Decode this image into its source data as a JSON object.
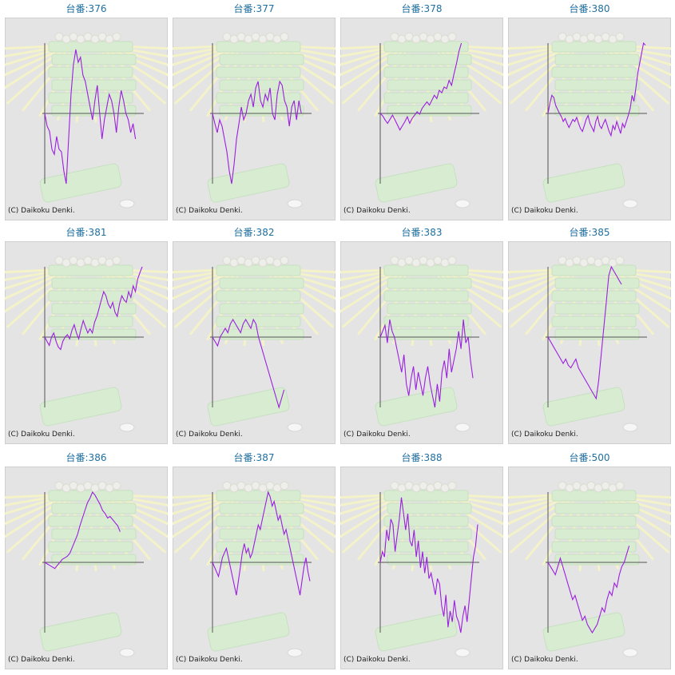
{
  "copyright": "(C) Daikoku Denki.",
  "colors": {
    "line": "#9b1fe0",
    "axis": "#555555",
    "title": "#1f6fa0",
    "panel_bg": "#e4e4e4",
    "panel_border": "#cfcfcf"
  },
  "chart_data": [
    {
      "type": "line",
      "title": "台番:376",
      "y": [
        0,
        -10,
        -14,
        -28,
        -32,
        -18,
        -28,
        -30,
        -45,
        -55,
        -20,
        15,
        38,
        50,
        40,
        44,
        30,
        25,
        15,
        5,
        -5,
        10,
        22,
        0,
        -20,
        -5,
        5,
        15,
        10,
        0,
        -15,
        5,
        18,
        10,
        0,
        -5,
        -15,
        -8,
        -20
      ]
    },
    {
      "type": "line",
      "title": "台番:377",
      "y": [
        0,
        -8,
        -15,
        -5,
        -10,
        -20,
        -30,
        -45,
        -55,
        -40,
        -20,
        -8,
        5,
        -5,
        0,
        10,
        15,
        5,
        20,
        25,
        10,
        5,
        15,
        10,
        20,
        0,
        -5,
        15,
        25,
        22,
        10,
        5,
        -10,
        5,
        10,
        -5,
        10,
        0
      ]
    },
    {
      "type": "line",
      "title": "台番:378",
      "y": [
        0,
        -3,
        -8,
        -12,
        -7,
        -2,
        -8,
        -14,
        -20,
        -15,
        -10,
        -4,
        -12,
        -6,
        -2,
        2,
        -1,
        6,
        10,
        14,
        10,
        16,
        22,
        18,
        28,
        25,
        32,
        30,
        40,
        34,
        48,
        60,
        75,
        85
      ]
    },
    {
      "type": "line",
      "title": "台番:380",
      "y": [
        0,
        10,
        18,
        16,
        8,
        4,
        0,
        -3,
        -8,
        -5,
        -10,
        -14,
        -10,
        -6,
        -8,
        -4,
        -10,
        -15,
        -18,
        -12,
        -6,
        -2,
        -10,
        -14,
        -18,
        -8,
        -3,
        -12,
        -15,
        -10,
        -6,
        -12,
        -18,
        -22,
        -12,
        -16,
        -8,
        -14,
        -20,
        -10,
        -14,
        -8,
        -2,
        5,
        18,
        12,
        25,
        40,
        50,
        60,
        70,
        68
      ]
    },
    {
      "type": "line",
      "title": "台番:381",
      "y": [
        0,
        -5,
        -10,
        0,
        5,
        -5,
        -12,
        -15,
        -5,
        0,
        3,
        -2,
        8,
        15,
        5,
        -2,
        10,
        20,
        12,
        5,
        10,
        5,
        18,
        25,
        35,
        45,
        55,
        50,
        40,
        35,
        42,
        30,
        25,
        40,
        50,
        45,
        42,
        55,
        48,
        62,
        55,
        70,
        78,
        85
      ]
    },
    {
      "type": "line",
      "title": "台番:382",
      "y": [
        0,
        -5,
        -10,
        0,
        5,
        10,
        5,
        15,
        20,
        15,
        10,
        5,
        15,
        20,
        15,
        10,
        20,
        15,
        0,
        -10,
        -20,
        -30,
        -40,
        -50,
        -60,
        -70,
        -80,
        -70,
        -60
      ]
    },
    {
      "type": "line",
      "title": "台番:383",
      "y": [
        0,
        5,
        10,
        -5,
        15,
        5,
        0,
        -10,
        -20,
        -30,
        -15,
        -40,
        -50,
        -35,
        -25,
        -45,
        -30,
        -40,
        -50,
        -35,
        -25,
        -40,
        -50,
        -60,
        -40,
        -55,
        -30,
        -20,
        -35,
        -10,
        -30,
        -20,
        -10,
        5,
        -10,
        15,
        -5,
        0,
        -20,
        -35
      ]
    },
    {
      "type": "line",
      "title": "台番:385",
      "y": [
        0,
        -5,
        -10,
        -15,
        -20,
        -25,
        -30,
        -25,
        -32,
        -35,
        -30,
        -25,
        -35,
        -40,
        -45,
        -50,
        -55,
        -60,
        -65,
        -70,
        -50,
        -20,
        10,
        40,
        70,
        80,
        75,
        70,
        65,
        60
      ]
    },
    {
      "type": "line",
      "title": "台番:386",
      "y": [
        0,
        -5,
        -10,
        -15,
        -20,
        -10,
        0,
        10,
        15,
        20,
        30,
        50,
        70,
        90,
        120,
        145,
        170,
        195,
        210,
        230,
        220,
        205,
        190,
        170,
        160,
        145,
        150,
        140,
        130,
        120,
        100
      ]
    },
    {
      "type": "line",
      "title": "台番:387",
      "y": [
        0,
        -5,
        -10,
        -15,
        -5,
        5,
        10,
        15,
        5,
        -5,
        -15,
        -25,
        -35,
        -20,
        -5,
        10,
        20,
        10,
        15,
        5,
        10,
        20,
        30,
        40,
        35,
        45,
        55,
        65,
        75,
        70,
        60,
        65,
        55,
        45,
        50,
        40,
        30,
        35,
        25,
        15,
        5,
        -5,
        -15,
        -25,
        -35,
        -20,
        -5,
        5,
        -10,
        -20
      ]
    },
    {
      "type": "line",
      "title": "台番:388",
      "y": [
        0,
        10,
        5,
        30,
        20,
        40,
        35,
        10,
        25,
        40,
        60,
        45,
        30,
        45,
        20,
        15,
        30,
        5,
        20,
        -5,
        10,
        -10,
        5,
        -15,
        -10,
        -20,
        -30,
        -15,
        -20,
        -40,
        -50,
        -30,
        -60,
        -45,
        -55,
        -35,
        -50,
        -55,
        -65,
        -50,
        -40,
        -55,
        -35,
        -15,
        5,
        15,
        35
      ]
    },
    {
      "type": "line",
      "title": "台番:500",
      "y": [
        0,
        -5,
        -10,
        -15,
        -5,
        5,
        -5,
        -15,
        -25,
        -35,
        -45,
        -40,
        -50,
        -60,
        -70,
        -65,
        -75,
        -80,
        -85,
        -80,
        -75,
        -65,
        -55,
        -60,
        -45,
        -35,
        -40,
        -25,
        -30,
        -15,
        -5,
        0,
        10,
        20
      ]
    }
  ]
}
